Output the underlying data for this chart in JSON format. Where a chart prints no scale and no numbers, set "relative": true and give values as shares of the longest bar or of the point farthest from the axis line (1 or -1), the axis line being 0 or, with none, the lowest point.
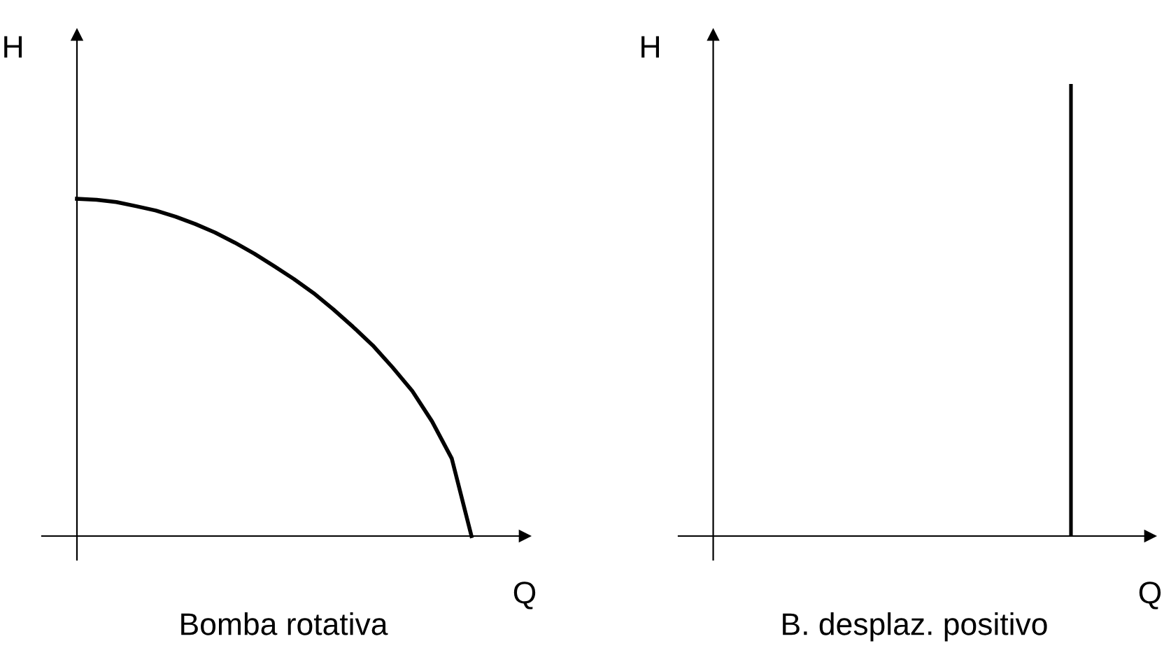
{
  "chart_data": [
    {
      "type": "line",
      "title": "Bomba rotativa",
      "xlabel": "Q",
      "ylabel": "H",
      "relative": true,
      "marker": "none",
      "line_style": "solid",
      "categories": [
        null,
        null,
        null,
        null,
        null,
        null,
        null,
        null,
        null,
        null,
        null,
        null,
        null,
        null,
        null,
        null,
        null,
        null,
        null,
        null,
        null
      ],
      "series": [
        {
          "color": "#000000",
          "values": [
            1,
            0.997,
            0.99,
            0.978,
            0.965,
            0.947,
            0.925,
            0.9,
            0.87,
            0.837,
            0.8,
            0.762,
            0.72,
            0.672,
            0.62,
            0.565,
            0.5,
            0.43,
            0.34,
            0.23,
            0
          ]
        }
      ]
    },
    {
      "type": "bar",
      "title": "B. desplaz. positivo",
      "xlabel": "Q",
      "ylabel": "H",
      "relative": true,
      "categories": [
        null
      ],
      "series": [
        {
          "color": "#000000",
          "values": [
            1
          ]
        }
      ]
    }
  ]
}
